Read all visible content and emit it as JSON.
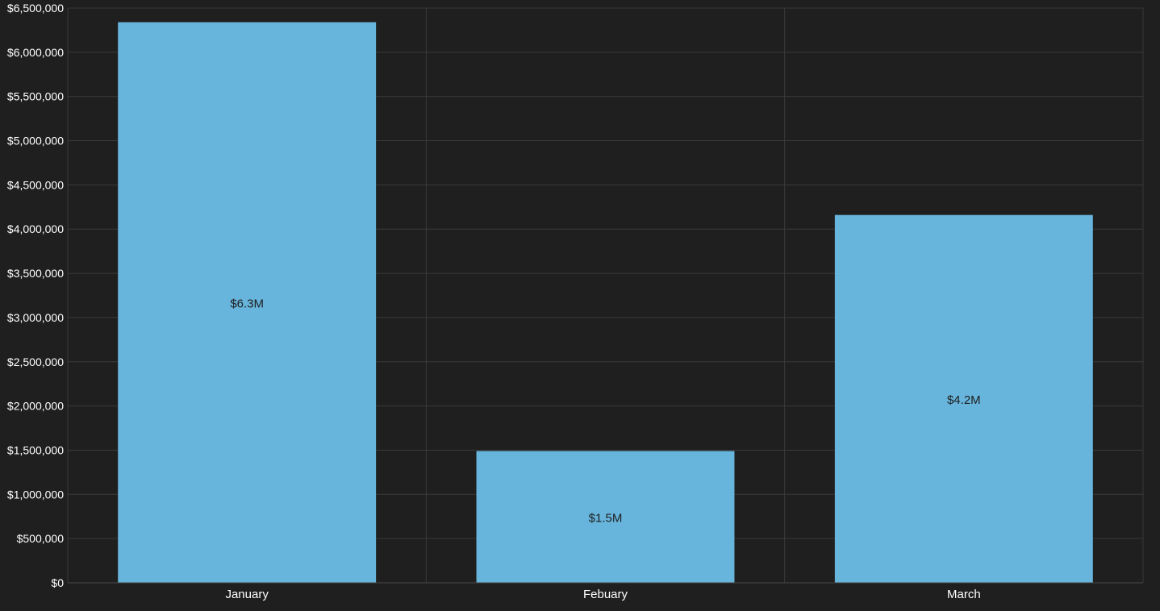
{
  "chart_data": {
    "type": "bar",
    "categories": [
      "January",
      "Febuary",
      "March"
    ],
    "values": [
      6340000,
      1490000,
      4160000
    ],
    "data_labels": [
      "$6.3M",
      "$1.5M",
      "$4.2M"
    ],
    "ylim": [
      0,
      6500000
    ],
    "yticks": [
      0,
      500000,
      1000000,
      1500000,
      2000000,
      2500000,
      3000000,
      3500000,
      4000000,
      4500000,
      5000000,
      5500000,
      6000000,
      6500000
    ],
    "ytick_labels": [
      "$0",
      "$500,000",
      "$1,000,000",
      "$1,500,000",
      "$2,000,000",
      "$2,500,000",
      "$3,000,000",
      "$3,500,000",
      "$4,000,000",
      "$4,500,000",
      "$5,000,000",
      "$5,500,000",
      "$6,000,000",
      "$6,500,000"
    ],
    "grid": true,
    "legend": "none",
    "colors": {
      "background": "#1f1f1f",
      "bar": "#67b5dc",
      "grid": "#3a3a3a",
      "axis_text": "#ffffff",
      "data_label": "#1f1f1f"
    }
  }
}
